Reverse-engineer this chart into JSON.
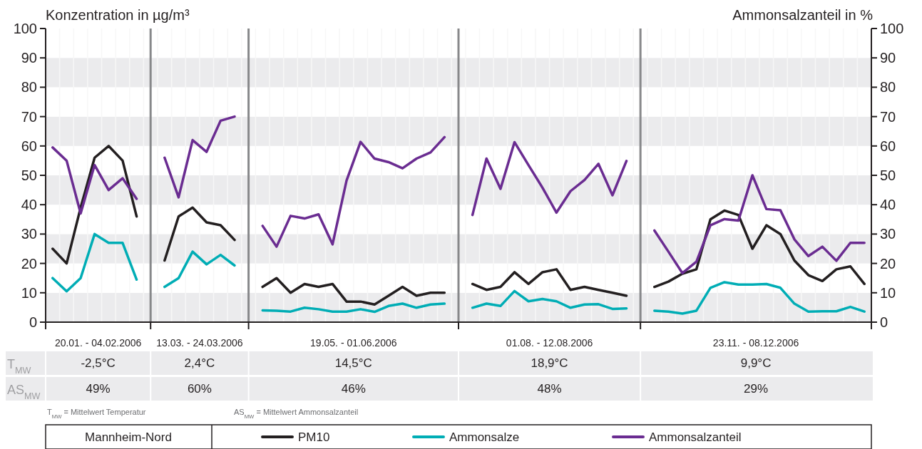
{
  "chart_data": {
    "type": "line",
    "ylabel": "Konzentration in µg/m³",
    "y2label": "Ammonsalzanteil in %",
    "categories": [
      null,
      null,
      null,
      null,
      null,
      null,
      null,
      null,
      null,
      null,
      null,
      null,
      null,
      null,
      null,
      null,
      null,
      null,
      null,
      null,
      null,
      null,
      null,
      null,
      null,
      null,
      null,
      null,
      null,
      null,
      null,
      null,
      null,
      null,
      null,
      null,
      null,
      null,
      null,
      null,
      null,
      null,
      null,
      null,
      null,
      null,
      null,
      null,
      null,
      null,
      null,
      null,
      null,
      null,
      null,
      null,
      null,
      null,
      null
    ],
    "ylim": [
      0,
      100
    ],
    "yticks": [
      0,
      10,
      20,
      30,
      40,
      50,
      60,
      70,
      80,
      90,
      100
    ],
    "y2lim": [
      0,
      100
    ],
    "y2ticks": [
      0,
      10,
      20,
      30,
      40,
      50,
      60,
      70,
      80,
      90,
      100
    ],
    "grid": true,
    "legend": "bottom",
    "annotations": [
      "20.01. - 04.02.2006",
      "13.03. - 24.03.2006",
      "19.05. - 01.06.2006",
      "01.08. - 12.08.2006",
      "23.11. - 08.12.2006",
      "-2,5°C",
      "2,4°C",
      "14,5°C",
      "18,9°C",
      "9,9°C",
      "49%",
      "60%",
      "46%",
      "48%",
      "29%",
      "T$_{MW}$",
      "AS$_{MW}$",
      "T$_{MW}$ = Mittelwert Temperatur",
      "AS$_{MW}$ = Mittelwert Ammonsalzanteil",
      "Mannheim-Nord"
    ],
    "series": [
      {
        "name": "PM10",
        "color": "#231f20",
        "values": [
          25,
          20,
          39,
          56,
          60,
          55,
          36,
          null,
          21,
          36,
          39,
          34,
          33,
          28,
          null,
          12,
          15,
          10,
          13,
          12,
          13,
          7,
          7,
          6,
          9,
          12,
          9,
          10,
          10,
          null,
          13,
          11,
          12,
          17,
          13,
          17,
          18,
          11,
          12,
          11,
          10,
          9,
          null,
          12,
          13.8,
          16.5,
          18,
          35,
          38,
          36.5,
          25,
          33,
          30,
          21,
          16,
          14,
          18,
          19,
          13
        ]
      },
      {
        "name": "Ammonsalze",
        "color": "#00adb5",
        "values": [
          15,
          10.5,
          15,
          30,
          27,
          27,
          14.5,
          null,
          12,
          15,
          24,
          19.7,
          22.9,
          19.3,
          null,
          4,
          3.9,
          3.6,
          4.9,
          4.4,
          3.6,
          3.6,
          4.4,
          3.5,
          5.5,
          6.3,
          4.9,
          6,
          6.3,
          null,
          4.9,
          6.3,
          5.5,
          10.6,
          7.1,
          7.9,
          7.1,
          4.9,
          6,
          6.1,
          4.5,
          4.7,
          null,
          3.9,
          3.6,
          2.9,
          3.9,
          11.7,
          13.6,
          12.8,
          12.8,
          13,
          11.7,
          6.3,
          3.6,
          3.7,
          3.7,
          5.2,
          3.6
        ]
      },
      {
        "name": "Ammonsalzanteil",
        "color": "#6a2c91",
        "values": [
          59.5,
          55,
          37,
          53.5,
          45,
          49,
          42,
          null,
          56,
          42.5,
          62,
          58,
          68.6,
          70,
          null,
          32.8,
          25.7,
          36.2,
          35.3,
          36.7,
          26.5,
          48.2,
          61.4,
          55.7,
          54.5,
          52.4,
          55.7,
          57.8,
          63,
          null,
          36.5,
          55.7,
          45.4,
          61.3,
          53.5,
          45.8,
          37.3,
          44.6,
          48.4,
          53.9,
          43.2,
          54.9,
          null,
          31.2,
          24,
          16.7,
          20.6,
          33,
          35.1,
          34.6,
          50,
          38.5,
          38.1,
          28.2,
          22.5,
          25.7,
          20.9,
          27,
          27
        ]
      }
    ]
  }
}
